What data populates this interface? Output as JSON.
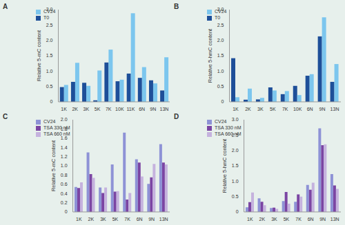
{
  "chart_data": [
    {
      "type": "bar",
      "title": "A",
      "y_label": "Relative 5-mC content",
      "categories": [
        "1K",
        "2K",
        "3K",
        "5K",
        "7K",
        "10K",
        "11K",
        "6N",
        "9N",
        "13N"
      ],
      "series": [
        {
          "name": "T0",
          "color": "#1e4f99",
          "values": [
            0.48,
            0.65,
            0.62,
            0.05,
            1.28,
            0.67,
            0.92,
            0.78,
            0.7,
            0.37
          ]
        },
        {
          "name": "CV24",
          "color": "#7cc6ee",
          "values": [
            0.55,
            1.27,
            0.52,
            1.02,
            1.7,
            0.72,
            2.88,
            1.13,
            0.6,
            1.45
          ]
        }
      ],
      "ylim": [
        0,
        3
      ],
      "yticks": [
        0,
        0.5,
        {
          "value": 1,
          "label": "1.0"
        },
        1.5,
        {
          "value": 2,
          "label": "2.0"
        },
        2.5,
        {
          "value": 3,
          "label": "3.0"
        }
      ],
      "grid": false,
      "legend": "upper left"
    },
    {
      "type": "bar",
      "title": "B",
      "y_label": "Relative 5-hmC content",
      "categories": [
        "1K",
        "2K",
        "3K",
        "5K",
        "7K",
        "10K",
        "6N",
        "9N",
        "13N"
      ],
      "series": [
        {
          "name": "T0",
          "color": "#1e4f99",
          "values": [
            1.42,
            0.07,
            0.08,
            0.47,
            0.25,
            0.52,
            0.85,
            2.13,
            0.65
          ]
        },
        {
          "name": "CV24",
          "color": "#7cc6ee",
          "values": [
            0.15,
            0.43,
            0.13,
            0.37,
            0.35,
            0.22,
            0.9,
            2.75,
            1.23
          ]
        }
      ],
      "ylim": [
        0,
        3
      ],
      "yticks": [
        0,
        0.5,
        {
          "value": 1,
          "label": "1.0"
        },
        1.5,
        {
          "value": 2,
          "label": "2.0"
        },
        2.5,
        {
          "value": 3,
          "label": "3.0"
        }
      ],
      "grid": false,
      "legend": "upper left"
    },
    {
      "type": "bar",
      "title": "C",
      "y_label": "Relative 5-mC content",
      "categories": [
        "1K",
        "2K",
        "3K",
        "5K",
        "7K",
        "6N",
        "9N",
        "13N"
      ],
      "series": [
        {
          "name": "CV24",
          "color": "#8e92d6",
          "values": [
            0.54,
            1.29,
            0.53,
            1.03,
            1.72,
            1.14,
            0.61,
            1.47
          ]
        },
        {
          "name": "TSA 330 nM",
          "color": "#7b45a3",
          "values": [
            0.52,
            0.82,
            0.41,
            0.44,
            0.27,
            1.07,
            0.75,
            1.07
          ]
        },
        {
          "name": "TSA 660 nM",
          "color": "#c5b2de",
          "values": [
            0.64,
            0.74,
            0.53,
            0.45,
            0.41,
            0.77,
            1.04,
            1.03
          ]
        }
      ],
      "ylim": [
        0,
        2
      ],
      "yticks": [
        0,
        0.2,
        0.4,
        0.6,
        0.8,
        {
          "value": 1,
          "label": "1.0"
        },
        1.2,
        1.4,
        1.6,
        1.8,
        {
          "value": 2,
          "label": "2.0"
        }
      ],
      "grid": false,
      "legend": "upper left"
    },
    {
      "type": "bar",
      "title": "D",
      "y_label": "Relative 5-hmC content",
      "categories": [
        "1K",
        "2K",
        "3K",
        "5K",
        "7K",
        "6N",
        "9N",
        "13N"
      ],
      "series": [
        {
          "name": "CV24",
          "color": "#8e92d6",
          "values": [
            0.15,
            0.44,
            0.13,
            0.35,
            0.33,
            0.88,
            2.72,
            1.23
          ]
        },
        {
          "name": "TSA 330 nM",
          "color": "#7b45a3",
          "values": [
            0.32,
            0.33,
            0.14,
            0.65,
            0.57,
            0.72,
            2.17,
            0.86
          ]
        },
        {
          "name": "TSA 660 nM",
          "color": "#c5b2de",
          "values": [
            0.63,
            0.22,
            0.1,
            0.27,
            0.5,
            0.95,
            2.2,
            0.75
          ]
        }
      ],
      "ylim": [
        0,
        3
      ],
      "yticks": [
        0,
        0.5,
        {
          "value": 1,
          "label": "1.0"
        },
        1.5,
        {
          "value": 2,
          "label": "2.0"
        },
        2.5,
        {
          "value": 3,
          "label": "3.0"
        }
      ],
      "grid": false,
      "legend": "upper left"
    }
  ]
}
